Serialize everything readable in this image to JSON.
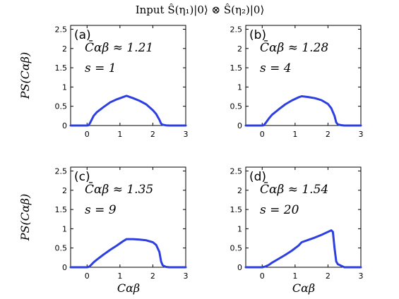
{
  "figure": {
    "title": "Input Ŝ(η₁)|0⟩ ⊗ Ŝ(η₂)|0⟩",
    "xlabel": "Cαβ",
    "ylabel": "PS(Cαβ)",
    "line_color": "#2d3fe0"
  },
  "chart_data": [
    {
      "type": "line",
      "panel": "(a)",
      "mean_text": "C̄αβ ≈ 1.21",
      "s_text": "s = 1",
      "xlim": [
        -0.5,
        3
      ],
      "ylim": [
        0,
        2.6
      ],
      "xticks": [
        0,
        1,
        2,
        3
      ],
      "yticks": [
        0,
        0.5,
        1,
        1.5,
        2,
        2.5
      ],
      "x": [
        -0.5,
        0,
        0.05,
        0.1,
        0.2,
        0.3,
        0.5,
        0.7,
        0.9,
        1.1,
        1.2,
        1.4,
        1.6,
        1.8,
        2.0,
        2.1,
        2.2,
        2.25,
        2.3,
        2.4,
        2.5,
        3.0
      ],
      "y": [
        0,
        0,
        0.01,
        0.08,
        0.25,
        0.35,
        0.48,
        0.6,
        0.68,
        0.74,
        0.77,
        0.71,
        0.64,
        0.55,
        0.4,
        0.3,
        0.15,
        0.05,
        0.02,
        0.005,
        0,
        0
      ]
    },
    {
      "type": "line",
      "panel": "(b)",
      "mean_text": "C̄αβ ≈ 1.28",
      "s_text": "s = 4",
      "xlim": [
        -0.5,
        3
      ],
      "ylim": [
        0,
        2.6
      ],
      "xticks": [
        0,
        1,
        2,
        3
      ],
      "yticks": [
        0,
        0.5,
        1,
        1.5,
        2,
        2.5
      ],
      "x": [
        -0.5,
        0,
        0.05,
        0.1,
        0.2,
        0.3,
        0.5,
        0.7,
        0.9,
        1.1,
        1.2,
        1.4,
        1.6,
        1.8,
        2.0,
        2.1,
        2.2,
        2.25,
        2.3,
        2.4,
        2.5,
        3.0
      ],
      "y": [
        0,
        0,
        0.01,
        0.06,
        0.18,
        0.28,
        0.42,
        0.55,
        0.65,
        0.73,
        0.76,
        0.74,
        0.71,
        0.66,
        0.56,
        0.45,
        0.25,
        0.08,
        0.03,
        0.01,
        0,
        0
      ]
    },
    {
      "type": "line",
      "panel": "(c)",
      "mean_text": "C̄αβ ≈ 1.35",
      "s_text": "s = 9",
      "xlim": [
        -0.5,
        3
      ],
      "ylim": [
        0,
        2.6
      ],
      "xticks": [
        0,
        1,
        2,
        3
      ],
      "yticks": [
        0,
        0.5,
        1,
        1.5,
        2,
        2.5
      ],
      "x": [
        -0.5,
        0,
        0.05,
        0.1,
        0.2,
        0.3,
        0.5,
        0.7,
        0.9,
        1.1,
        1.2,
        1.4,
        1.6,
        1.8,
        2.0,
        2.1,
        2.2,
        2.25,
        2.3,
        2.4,
        2.5,
        3.0
      ],
      "y": [
        0,
        0,
        0.01,
        0.04,
        0.13,
        0.2,
        0.33,
        0.45,
        0.56,
        0.68,
        0.73,
        0.73,
        0.72,
        0.7,
        0.65,
        0.58,
        0.4,
        0.15,
        0.05,
        0.01,
        0,
        0
      ]
    },
    {
      "type": "line",
      "panel": "(d)",
      "mean_text": "C̄αβ ≈ 1.54",
      "s_text": "s = 20",
      "xlim": [
        -0.5,
        3
      ],
      "ylim": [
        0,
        2.6
      ],
      "xticks": [
        0,
        1,
        2,
        3
      ],
      "yticks": [
        0,
        0.5,
        1,
        1.5,
        2,
        2.5
      ],
      "x": [
        -0.5,
        0,
        0.1,
        0.2,
        0.3,
        0.5,
        0.7,
        0.9,
        1.1,
        1.2,
        1.4,
        1.6,
        1.8,
        2.0,
        2.1,
        2.15,
        2.2,
        2.25,
        2.3,
        2.4,
        2.5,
        3.0
      ],
      "y": [
        0,
        0,
        0.02,
        0.06,
        0.12,
        0.22,
        0.32,
        0.43,
        0.56,
        0.65,
        0.71,
        0.77,
        0.84,
        0.92,
        0.96,
        0.92,
        0.5,
        0.15,
        0.08,
        0.04,
        0,
        0
      ]
    }
  ]
}
